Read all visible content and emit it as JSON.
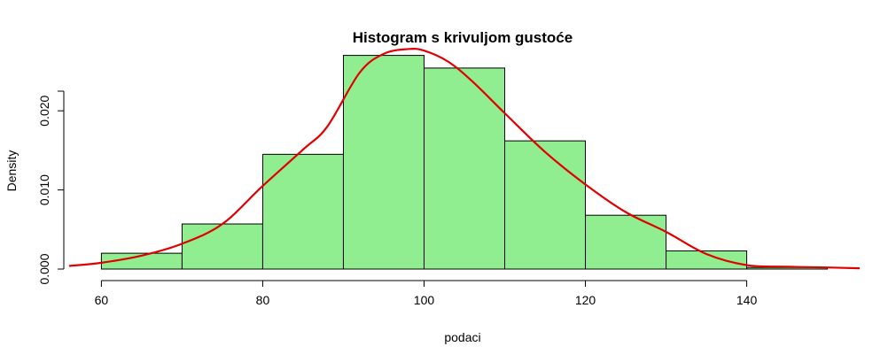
{
  "chart_data": {
    "type": "bar",
    "title": "Histogram s krivuljom gustoće",
    "xlabel": "podaci",
    "ylabel": "Density",
    "xlim": [
      56,
      154
    ],
    "ylim": [
      0,
      0.0255
    ],
    "x_ticks": [
      60,
      80,
      100,
      120,
      140
    ],
    "x_tick_labels": [
      "60",
      "80",
      "100",
      "120",
      "140"
    ],
    "y_ticks": [
      0.0,
      0.01,
      0.02
    ],
    "y_tick_labels": [
      "0.000",
      "0.010",
      "0.020"
    ],
    "bins": [
      {
        "start": 60,
        "end": 70,
        "density": 0.002
      },
      {
        "start": 70,
        "end": 80,
        "density": 0.0057
      },
      {
        "start": 80,
        "end": 90,
        "density": 0.0145
      },
      {
        "start": 90,
        "end": 100,
        "density": 0.027
      },
      {
        "start": 100,
        "end": 110,
        "density": 0.0254
      },
      {
        "start": 110,
        "end": 120,
        "density": 0.0162
      },
      {
        "start": 120,
        "end": 130,
        "density": 0.0068
      },
      {
        "start": 130,
        "end": 140,
        "density": 0.0023
      },
      {
        "start": 140,
        "end": 150,
        "density": 0.0002
      }
    ],
    "density_curve": {
      "x": [
        56,
        60,
        65,
        70,
        75,
        80,
        85,
        88,
        92,
        95,
        98,
        100,
        103,
        106,
        110,
        115,
        120,
        125,
        130,
        135,
        140,
        145,
        150,
        154
      ],
      "y": [
        0.0004,
        0.0008,
        0.0017,
        0.0032,
        0.0057,
        0.0105,
        0.0151,
        0.018,
        0.0248,
        0.0272,
        0.0278,
        0.0276,
        0.0262,
        0.0237,
        0.0197,
        0.0148,
        0.0107,
        0.0072,
        0.0047,
        0.0019,
        0.0005,
        0.0003,
        0.0002,
        0.0001
      ]
    },
    "colors": {
      "bar_fill": "#90ee90",
      "bar_stroke": "#000000",
      "curve": "#e00000"
    },
    "grid": false,
    "legend": false
  }
}
